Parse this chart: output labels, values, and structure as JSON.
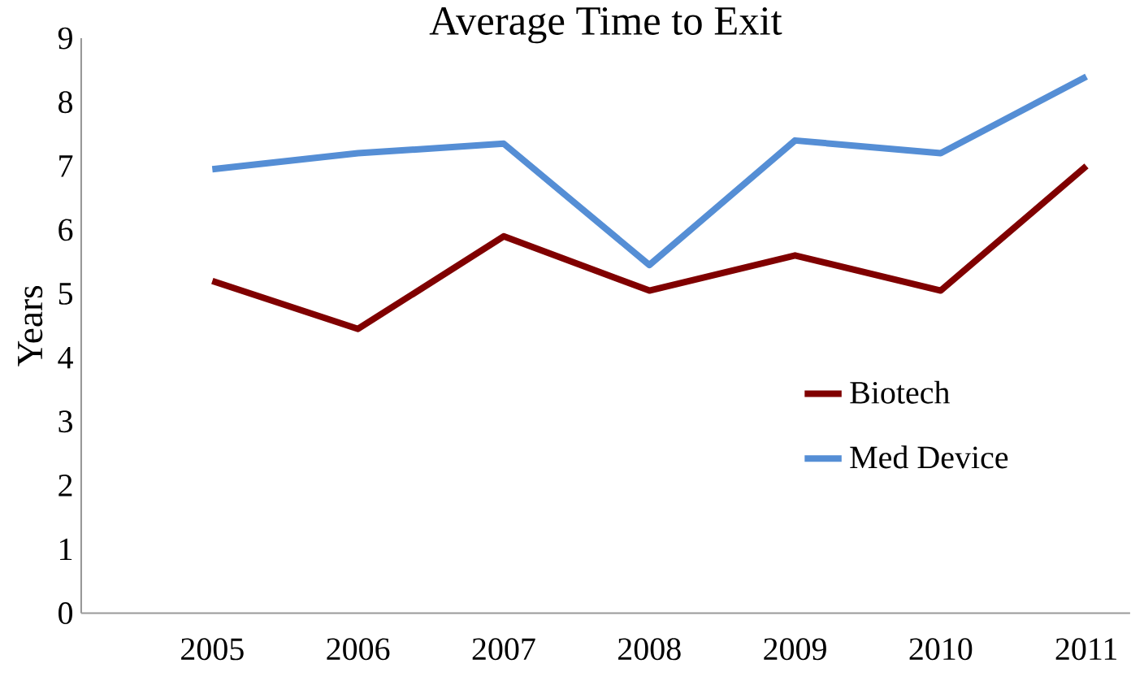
{
  "chart_data": {
    "type": "line",
    "title": "Average Time to Exit",
    "ylabel": "Years",
    "categories": [
      "2005",
      "2006",
      "2007",
      "2008",
      "2009",
      "2010",
      "2011"
    ],
    "series": [
      {
        "name": "Biotech",
        "color": "#800000",
        "values": [
          5.2,
          4.45,
          5.9,
          5.05,
          5.6,
          5.05,
          7.0
        ]
      },
      {
        "name": "Med Device",
        "color": "#558ed5",
        "values": [
          6.95,
          7.2,
          7.35,
          5.45,
          7.4,
          7.2,
          8.4
        ]
      }
    ],
    "ylim": [
      0,
      9
    ],
    "yticks": [
      0,
      1,
      2,
      3,
      4,
      5,
      6,
      7,
      8,
      9
    ],
    "legend": "right",
    "marker": "none",
    "line_style": "solid",
    "grid": false
  }
}
